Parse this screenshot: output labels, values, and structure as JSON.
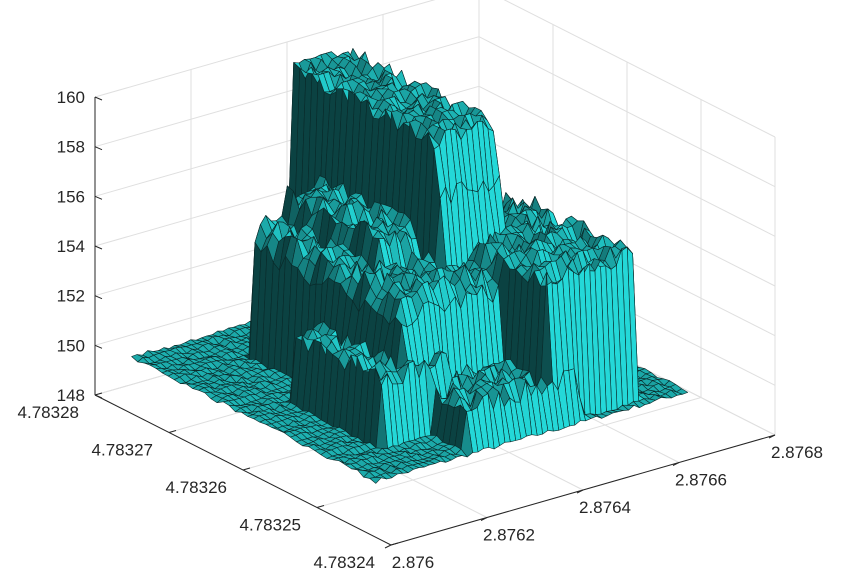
{
  "chart_data": {
    "type": "surface",
    "title": "",
    "xlabel": "",
    "ylabel": "",
    "zlabel": "",
    "grid": true,
    "colors": {
      "surface": "#1fbcbc",
      "edge": "#0a2a2a",
      "grid": "#dfdfdf",
      "axis": "#262626"
    },
    "x_axis": {
      "range": [
        2.876,
        2.8768
      ],
      "ticks": [
        2.876,
        2.8762,
        2.8764,
        2.8766,
        2.8768
      ],
      "tick_labels": [
        "2.876",
        "2.8762",
        "2.8764",
        "2.8766",
        "2.8768"
      ]
    },
    "y_axis": {
      "range": [
        4.78324,
        4.78328
      ],
      "ticks": [
        4.78324,
        4.78325,
        4.78326,
        4.78327,
        4.78328
      ],
      "tick_labels": [
        "4.78324",
        "4.78325",
        "4.78326",
        "4.78327",
        "4.78328"
      ]
    },
    "z_axis": {
      "range": [
        148,
        160
      ],
      "ticks": [
        148,
        150,
        152,
        154,
        156,
        158,
        160
      ],
      "tick_labels": [
        "148",
        "150",
        "152",
        "154",
        "156",
        "158",
        "160"
      ]
    },
    "surface_data": {
      "x_range": [
        2.87603,
        2.87668
      ],
      "y_range": [
        4.783244,
        4.783277
      ],
      "base_level": 149.8,
      "features": [
        {
          "name": "main_block",
          "x_range": [
            2.87634,
            2.87649
          ],
          "y_range": [
            4.783256,
            4.783277
          ],
          "z": 159.8
        },
        {
          "name": "mid_block",
          "x_range": [
            2.87619,
            2.87641
          ],
          "y_range": [
            4.783251,
            4.783272
          ],
          "z": 154.9
        },
        {
          "name": "mid_step",
          "x_range": [
            2.87625,
            2.87641
          ],
          "y_range": [
            4.783258,
            4.783272
          ],
          "z": 156.0
        },
        {
          "name": "lower_shelf",
          "x_range": [
            2.87612,
            2.87628
          ],
          "y_range": [
            4.783249,
            4.783262
          ],
          "z": 152.5
        },
        {
          "name": "right_ridge",
          "x_range": [
            2.8764,
            2.8766
          ],
          "y_range": [
            4.783245,
            4.783262
          ],
          "z": 155.5
        },
        {
          "name": "front_ridge",
          "x_range": [
            2.87622,
            2.87647
          ],
          "y_range": [
            4.783244,
            4.783255
          ],
          "z": 151.5
        }
      ]
    }
  }
}
